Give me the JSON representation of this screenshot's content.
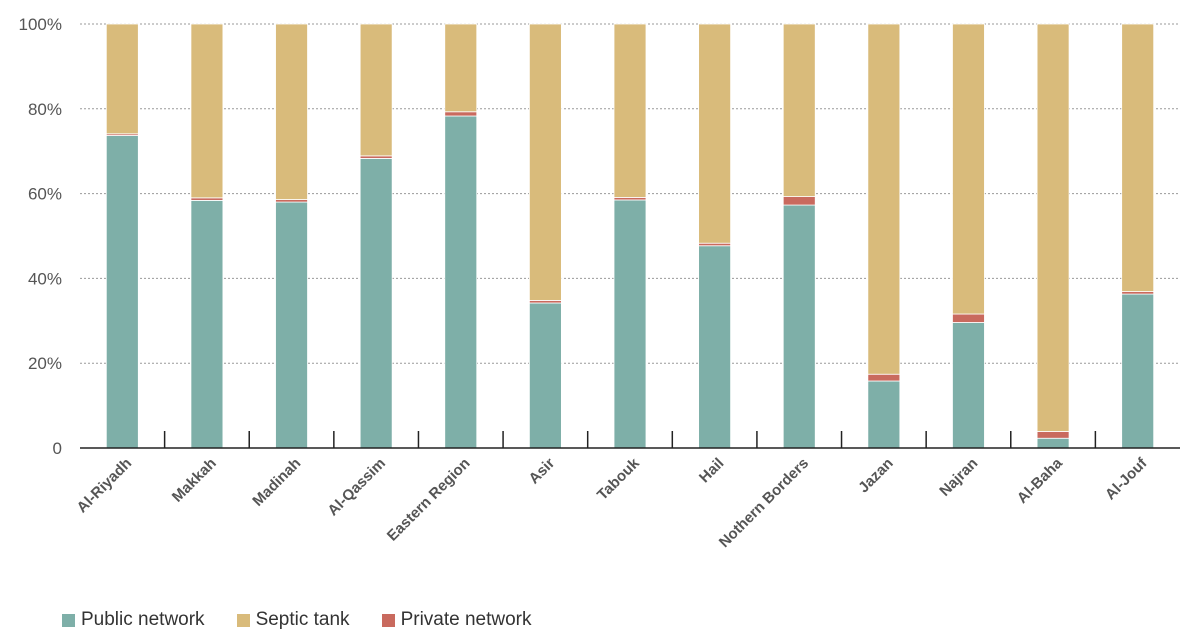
{
  "chart_data": {
    "type": "bar",
    "stacked": true,
    "categories": [
      "Al-Riyadh",
      "Makkah",
      "Madinah",
      "Al-Qassim",
      "Eastern Region",
      "Asir",
      "Tabouk",
      "Hail",
      "Nothern Borders",
      "Jazan",
      "Najran",
      "Al-Baha",
      "Al-Jouf"
    ],
    "series": [
      {
        "name": "Public network",
        "color": "#7eafa8",
        "values": [
          73.7,
          58.4,
          58.0,
          68.3,
          78.3,
          34.2,
          58.5,
          47.7,
          57.3,
          15.8,
          29.6,
          2.3,
          36.3
        ]
      },
      {
        "name": "Private network",
        "color": "#c96a5e",
        "values": [
          0.4,
          0.6,
          0.6,
          0.6,
          1.0,
          0.6,
          0.6,
          0.6,
          2.0,
          1.6,
          2.0,
          1.6,
          0.6
        ]
      },
      {
        "name": "Septic tank",
        "color": "#d9bb7b",
        "values": [
          25.9,
          41.0,
          41.4,
          31.1,
          20.7,
          65.2,
          40.9,
          51.7,
          40.7,
          82.6,
          68.4,
          96.1,
          63.1
        ]
      }
    ],
    "ylim": [
      0,
      100
    ],
    "y_ticks": [
      {
        "value": 0,
        "label": "0"
      },
      {
        "value": 20,
        "label": "20%"
      },
      {
        "value": 40,
        "label": "40%"
      },
      {
        "value": 60,
        "label": "60%"
      },
      {
        "value": 80,
        "label": "80%"
      },
      {
        "value": 100,
        "label": "100%"
      }
    ],
    "grid": true,
    "legend_position": "bottom-left"
  },
  "legend": [
    {
      "label": "Public network",
      "color": "#7eafa8"
    },
    {
      "label": "Septic tank",
      "color": "#d9bb7b"
    },
    {
      "label": "Private network",
      "color": "#c96a5e"
    }
  ]
}
